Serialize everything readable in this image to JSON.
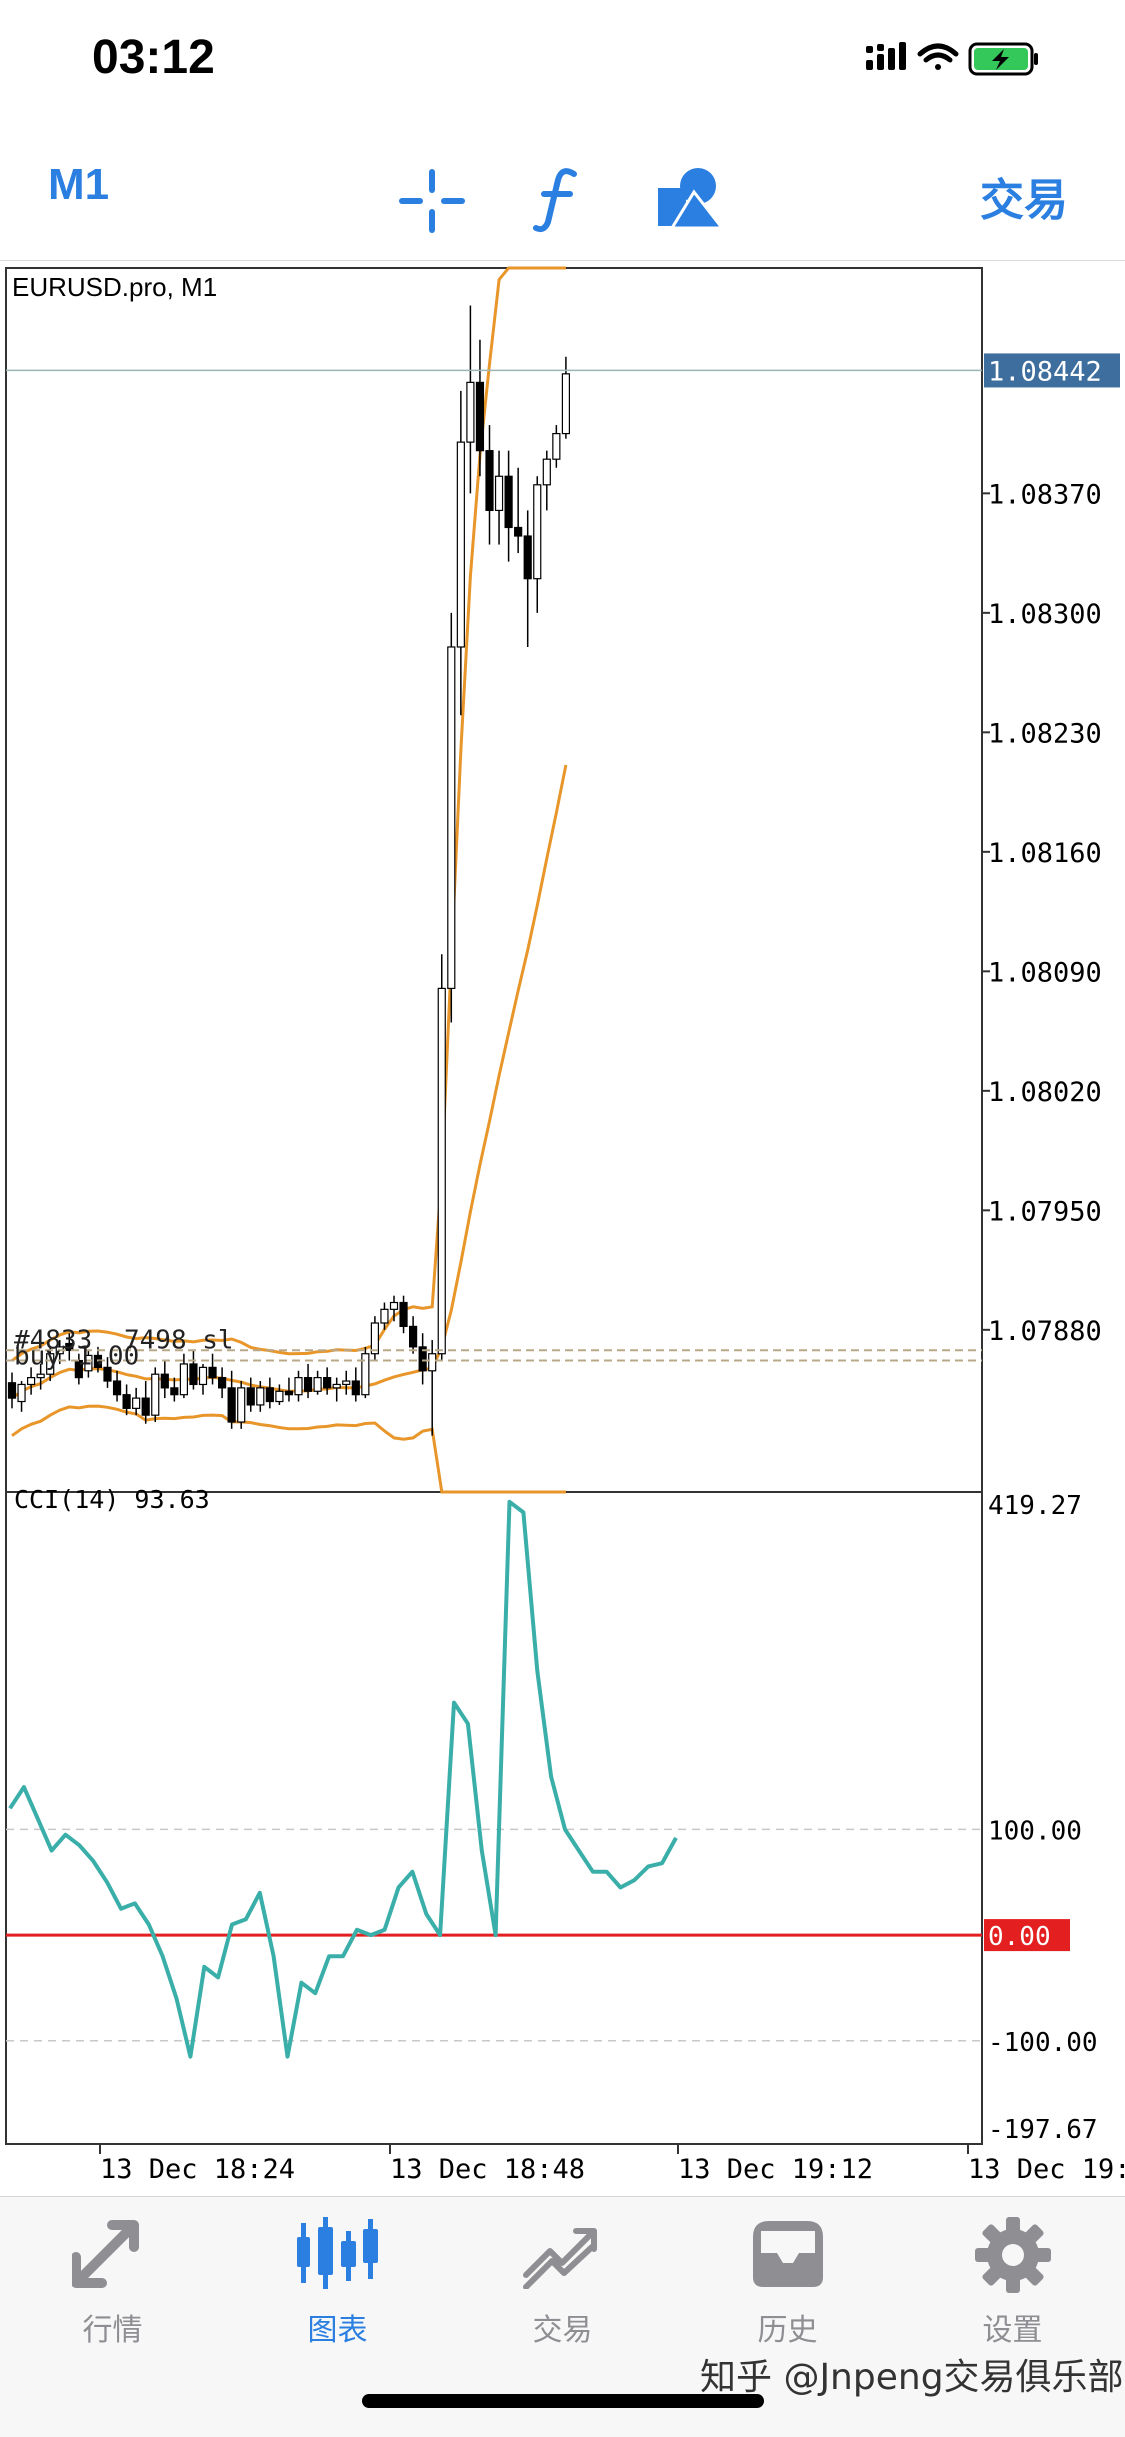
{
  "status_bar": {
    "time": "03:12"
  },
  "toolbar": {
    "timeframe": "M1",
    "trade": "交易",
    "crosshair_icon": "crosshair-icon",
    "indicator_icon": "function-icon",
    "objects_icon": "shapes-icon"
  },
  "chart": {
    "title": "EURUSD.pro, M1",
    "current_price": "1.08442",
    "price_ticks": [
      "1.08370",
      "1.08300",
      "1.08230",
      "1.08160",
      "1.08090",
      "1.08020",
      "1.07950",
      "1.07880"
    ],
    "price_tick_values": [
      1.0837,
      1.083,
      1.0823,
      1.0816,
      1.0809,
      1.0802,
      1.0795,
      1.0788
    ],
    "price_range": [
      1.07785,
      1.08502
    ],
    "current_value": 1.08442,
    "order_labels": [
      "#4833",
      "7498 sl",
      "buy 1.00"
    ],
    "order_line_values": [
      1.07868,
      1.07862
    ],
    "colors": {
      "bands": "#e8962a",
      "bull_fill": "#ffffff",
      "bear_fill": "#000000",
      "grid_line": "#9bb4b4",
      "price_label_bg": "#3d6e9e"
    }
  },
  "indicator": {
    "title": "CCI(14) 93.63",
    "max_label": "419.27",
    "min_label": "-197.67",
    "levels": [
      "100.00",
      "0.00",
      "-100.00"
    ],
    "level_values": [
      100,
      0,
      -100
    ],
    "range": [
      -197.67,
      419.27
    ],
    "line_color": "#3aaea8",
    "zero_color": "#e31f1f"
  },
  "time_axis": [
    "13 Dec 18:24",
    "13 Dec 18:48",
    "13 Dec 19:12",
    "13 Dec 19:"
  ],
  "chart_data": {
    "type": "line",
    "series": [
      {
        "values": [
          120,
          140,
          110,
          80,
          95,
          85,
          70,
          50,
          25,
          30,
          10,
          -20,
          -60,
          -115,
          -30,
          -40,
          10,
          15,
          40,
          -20,
          -115,
          -45,
          -55,
          -20,
          -20,
          5,
          0,
          5,
          45,
          60,
          20,
          0,
          220,
          200,
          80,
          0,
          410,
          400,
          250,
          150,
          100,
          80,
          60,
          60,
          45,
          52,
          65,
          68,
          92
        ]
      }
    ],
    "ylim": [
      -197.67,
      419.27
    ],
    "candles": [
      [
        1.07849,
        1.07855,
        1.07834,
        1.0784
      ],
      [
        1.07838,
        1.0785,
        1.07832,
        1.07848
      ],
      [
        1.07848,
        1.07858,
        1.07842,
        1.07852
      ],
      [
        1.07852,
        1.0786,
        1.07845,
        1.07854
      ],
      [
        1.07854,
        1.0787,
        1.0785,
        1.07866
      ],
      [
        1.07866,
        1.07874,
        1.0786,
        1.0787
      ],
      [
        1.07872,
        1.07878,
        1.07862,
        1.07868
      ],
      [
        1.07862,
        1.07866,
        1.07848,
        1.07852
      ],
      [
        1.07856,
        1.07868,
        1.07852,
        1.07865
      ],
      [
        1.07865,
        1.0787,
        1.07855,
        1.07858
      ],
      [
        1.07858,
        1.07864,
        1.07846,
        1.0785
      ],
      [
        1.0785,
        1.07856,
        1.07838,
        1.07842
      ],
      [
        1.07842,
        1.07848,
        1.0783,
        1.07834
      ],
      [
        1.07834,
        1.07846,
        1.0783,
        1.0784
      ],
      [
        1.0784,
        1.0785,
        1.07825,
        1.0783
      ],
      [
        1.0783,
        1.07858,
        1.07826,
        1.07854
      ],
      [
        1.07854,
        1.07862,
        1.0784,
        1.07846
      ],
      [
        1.07846,
        1.07852,
        1.07838,
        1.07842
      ],
      [
        1.07842,
        1.07866,
        1.0784,
        1.0786
      ],
      [
        1.0786,
        1.07868,
        1.07845,
        1.07848
      ],
      [
        1.07848,
        1.0786,
        1.07842,
        1.07858
      ],
      [
        1.07858,
        1.07866,
        1.07848,
        1.07852
      ],
      [
        1.07852,
        1.07858,
        1.0784,
        1.07846
      ],
      [
        1.07846,
        1.07856,
        1.07822,
        1.07826
      ],
      [
        1.07826,
        1.0785,
        1.07822,
        1.07846
      ],
      [
        1.07846,
        1.07852,
        1.07832,
        1.07836
      ],
      [
        1.07836,
        1.0785,
        1.07832,
        1.07846
      ],
      [
        1.07846,
        1.07852,
        1.07834,
        1.07838
      ],
      [
        1.07838,
        1.07848,
        1.07836,
        1.07844
      ],
      [
        1.07844,
        1.07852,
        1.07838,
        1.07842
      ],
      [
        1.07842,
        1.07856,
        1.07838,
        1.07852
      ],
      [
        1.07852,
        1.0786,
        1.0784,
        1.07844
      ],
      [
        1.07844,
        1.07856,
        1.07842,
        1.07852
      ],
      [
        1.07852,
        1.07858,
        1.07842,
        1.07846
      ],
      [
        1.07846,
        1.07852,
        1.07838,
        1.07848
      ],
      [
        1.07848,
        1.07856,
        1.07842,
        1.0785
      ],
      [
        1.0785,
        1.07858,
        1.07838,
        1.07842
      ],
      [
        1.07842,
        1.0787,
        1.0784,
        1.07866
      ],
      [
        1.07866,
        1.07888,
        1.07862,
        1.07884
      ],
      [
        1.07884,
        1.07896,
        1.0788,
        1.07892
      ],
      [
        1.07892,
        1.079,
        1.07885,
        1.07896
      ],
      [
        1.07896,
        1.079,
        1.07878,
        1.07882
      ],
      [
        1.07882,
        1.07888,
        1.07866,
        1.0787
      ],
      [
        1.0787,
        1.07878,
        1.07848,
        1.07856
      ],
      [
        1.07856,
        1.07874,
        1.07818,
        1.07866
      ],
      [
        1.07866,
        1.081,
        1.07862,
        1.0808
      ],
      [
        1.0808,
        1.083,
        1.0806,
        1.0828
      ],
      [
        1.0828,
        1.0843,
        1.0824,
        1.084
      ],
      [
        1.084,
        1.0848,
        1.0837,
        1.08435
      ],
      [
        1.08435,
        1.0846,
        1.0838,
        1.08395
      ],
      [
        1.08395,
        1.0841,
        1.0834,
        1.0836
      ],
      [
        1.0836,
        1.08395,
        1.0834,
        1.0838
      ],
      [
        1.0838,
        1.08395,
        1.0833,
        1.0835
      ],
      [
        1.0835,
        1.08385,
        1.08335,
        1.08345
      ],
      [
        1.08345,
        1.0836,
        1.0828,
        1.0832
      ],
      [
        1.0832,
        1.0838,
        1.083,
        1.08375
      ],
      [
        1.08375,
        1.08395,
        1.0836,
        1.0839
      ],
      [
        1.0839,
        1.0841,
        1.08385,
        1.08405
      ],
      [
        1.08405,
        1.0845,
        1.08402,
        1.0844
      ]
    ],
    "upper_band_end": 1.08502,
    "middle_band_end": 1.08209
  },
  "tabs": [
    {
      "label": "行情",
      "icon": "quotes-icon"
    },
    {
      "label": "图表",
      "icon": "chart-icon"
    },
    {
      "label": "交易",
      "icon": "trade-icon"
    },
    {
      "label": "历史",
      "icon": "history-icon"
    },
    {
      "label": "设置",
      "icon": "gear-icon"
    }
  ],
  "watermark": "知乎 @Jnpeng交易俱乐部"
}
